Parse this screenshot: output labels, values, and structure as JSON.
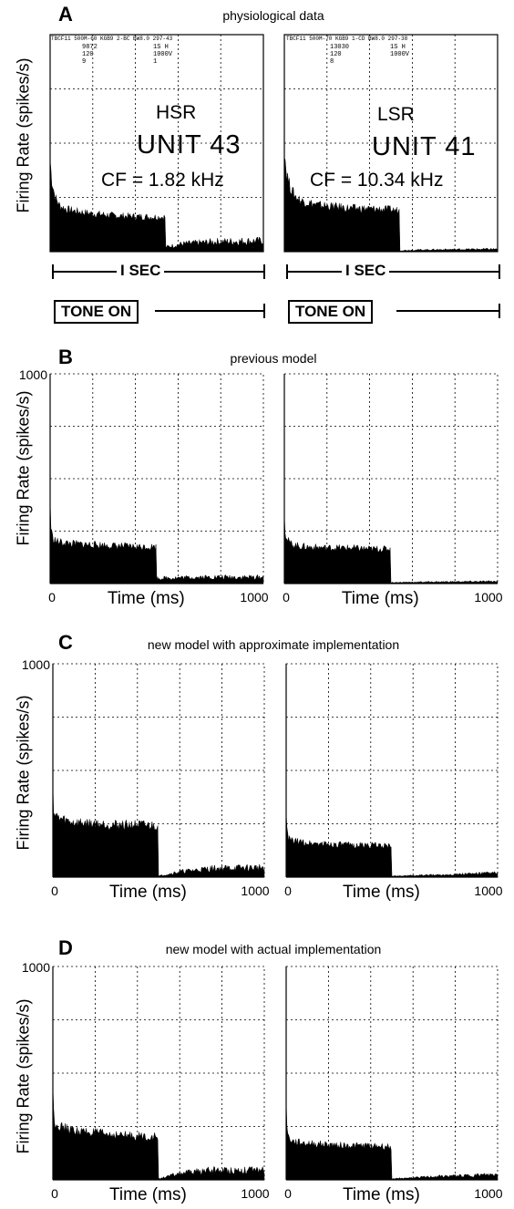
{
  "panels": {
    "A": {
      "letter": "A",
      "title": "physiological data",
      "ylabel": "Firing Rate (spikes/s)"
    },
    "B": {
      "letter": "B",
      "title": "previous model",
      "ylabel": "Firing Rate (spikes/s)"
    },
    "C": {
      "letter": "C",
      "title": "new model with approximate implementation",
      "ylabel": "Firing Rate (spikes/s)"
    },
    "D": {
      "letter": "D",
      "title": "new model with actual implementation",
      "ylabel": "Firing Rate (spikes/s)"
    }
  },
  "physio": {
    "left": {
      "header": "TBCF11 500M-60 KGB9 2-BC BW8.0 297-43",
      "meta": "9872\n120\n9",
      "meta2": "1S H\n1000V\n1",
      "type": "HSR",
      "unit": "UNIT 43",
      "cf": "CF = 1.82 kHz",
      "sec_label": "I SEC",
      "tone_label": "TONE ON"
    },
    "right": {
      "header": "TBCF11 500M-70 KGB9 1-CD BW8.0 297-38",
      "meta": "13030\n120\n8",
      "meta2": "1S H\n1000V",
      "type": "LSR",
      "unit": "UNIT 41",
      "cf": "CF = 10.34 kHz",
      "sec_label": "I SEC",
      "tone_label": "TONE ON"
    }
  },
  "chart_data": [
    {
      "panel": "A",
      "side": "left",
      "type": "area",
      "grid": true,
      "xlim": [
        0,
        1300
      ],
      "ylim": [
        0,
        1000
      ],
      "x": [
        0,
        10,
        30,
        60,
        100,
        200,
        400,
        600,
        700,
        701,
        800,
        1000,
        1300
      ],
      "values": [
        420,
        330,
        250,
        210,
        195,
        180,
        165,
        160,
        160,
        20,
        35,
        45,
        50
      ]
    },
    {
      "panel": "A",
      "side": "right",
      "type": "area",
      "grid": true,
      "xlim": [
        0,
        1300
      ],
      "ylim": [
        0,
        1000
      ],
      "x": [
        0,
        10,
        30,
        60,
        100,
        200,
        400,
        600,
        700,
        701,
        800,
        1000,
        1300
      ],
      "values": [
        480,
        380,
        310,
        260,
        235,
        215,
        200,
        195,
        190,
        5,
        8,
        10,
        12
      ]
    },
    {
      "panel": "B",
      "side": "left",
      "type": "area",
      "xlabel": "Time (ms)",
      "ylim": [
        0,
        1000
      ],
      "xlim": [
        0,
        1000
      ],
      "xticks": [
        "0",
        "1000"
      ],
      "yticks": [
        "1000"
      ],
      "x": [
        0,
        3,
        10,
        30,
        60,
        100,
        200,
        300,
        400,
        499,
        500,
        700,
        1000
      ],
      "values": [
        400,
        280,
        220,
        200,
        195,
        190,
        185,
        180,
        175,
        175,
        25,
        30,
        30
      ]
    },
    {
      "panel": "B",
      "side": "right",
      "type": "area",
      "xlabel": "Time (ms)",
      "ylim": [
        0,
        1000
      ],
      "xlim": [
        0,
        1000
      ],
      "xticks": [
        "0",
        "1000"
      ],
      "x": [
        0,
        3,
        10,
        30,
        60,
        100,
        200,
        300,
        400,
        499,
        500,
        700,
        1000
      ],
      "values": [
        360,
        260,
        210,
        190,
        180,
        175,
        170,
        170,
        165,
        165,
        5,
        8,
        10
      ]
    },
    {
      "panel": "C",
      "side": "left",
      "type": "area",
      "xlabel": "Time (ms)",
      "ylim": [
        0,
        1000
      ],
      "xlim": [
        0,
        1000
      ],
      "xticks": [
        "0",
        "1000"
      ],
      "yticks": [
        "1000"
      ],
      "x": [
        0,
        3,
        10,
        30,
        60,
        100,
        200,
        300,
        400,
        499,
        500,
        600,
        750,
        1000
      ],
      "values": [
        430,
        320,
        290,
        275,
        265,
        255,
        250,
        245,
        245,
        240,
        5,
        25,
        40,
        45
      ]
    },
    {
      "panel": "C",
      "side": "right",
      "type": "area",
      "xlabel": "Time (ms)",
      "ylim": [
        0,
        1000
      ],
      "xlim": [
        0,
        1000
      ],
      "xticks": [
        "0",
        "1000"
      ],
      "x": [
        0,
        3,
        10,
        30,
        60,
        100,
        200,
        300,
        400,
        499,
        500,
        700,
        1000
      ],
      "values": [
        330,
        220,
        180,
        170,
        165,
        160,
        155,
        150,
        150,
        145,
        5,
        10,
        20
      ]
    },
    {
      "panel": "D",
      "side": "left",
      "type": "area",
      "xlabel": "Time (ms)",
      "ylim": [
        0,
        1000
      ],
      "xlim": [
        0,
        1000
      ],
      "xticks": [
        "0",
        "1000"
      ],
      "yticks": [
        "1000"
      ],
      "x": [
        0,
        3,
        10,
        30,
        60,
        100,
        200,
        300,
        400,
        499,
        500,
        600,
        750,
        1000
      ],
      "values": [
        430,
        320,
        270,
        250,
        240,
        230,
        220,
        210,
        205,
        200,
        5,
        30,
        45,
        45
      ]
    },
    {
      "panel": "D",
      "side": "right",
      "type": "area",
      "xlabel": "Time (ms)",
      "ylim": [
        0,
        1000
      ],
      "xlim": [
        0,
        1000
      ],
      "xticks": [
        "0",
        "1000"
      ],
      "x": [
        0,
        3,
        10,
        30,
        60,
        100,
        200,
        300,
        400,
        499,
        500,
        700,
        1000
      ],
      "values": [
        400,
        250,
        200,
        180,
        175,
        170,
        165,
        160,
        160,
        155,
        5,
        15,
        25
      ]
    }
  ]
}
